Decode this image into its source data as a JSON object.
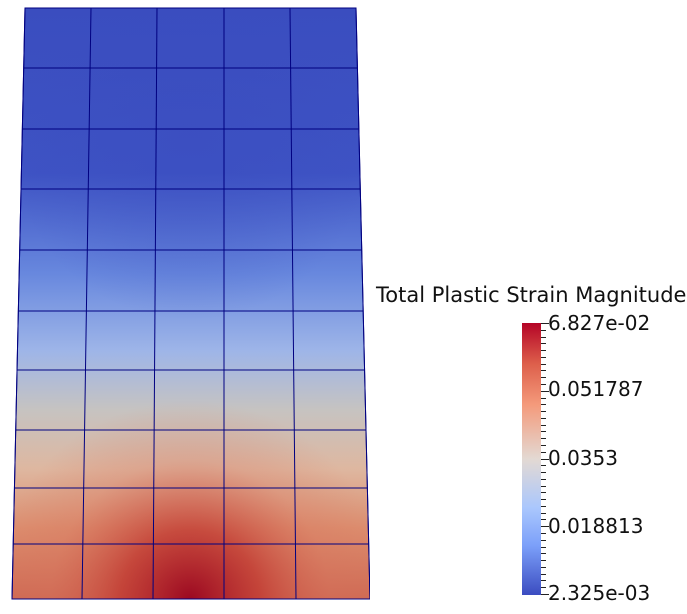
{
  "legend": {
    "title": "Total Plastic Strain Magnitude",
    "labels": {
      "max": "6.827e-02",
      "l1": "0.051787",
      "l2": "0.0353",
      "l3": "0.018813",
      "min": "2.325e-03"
    }
  },
  "colormap": {
    "high": "#b40426",
    "mid": "#dddcdc",
    "low": "#3b4cc0",
    "grid_line": "#000080"
  }
}
